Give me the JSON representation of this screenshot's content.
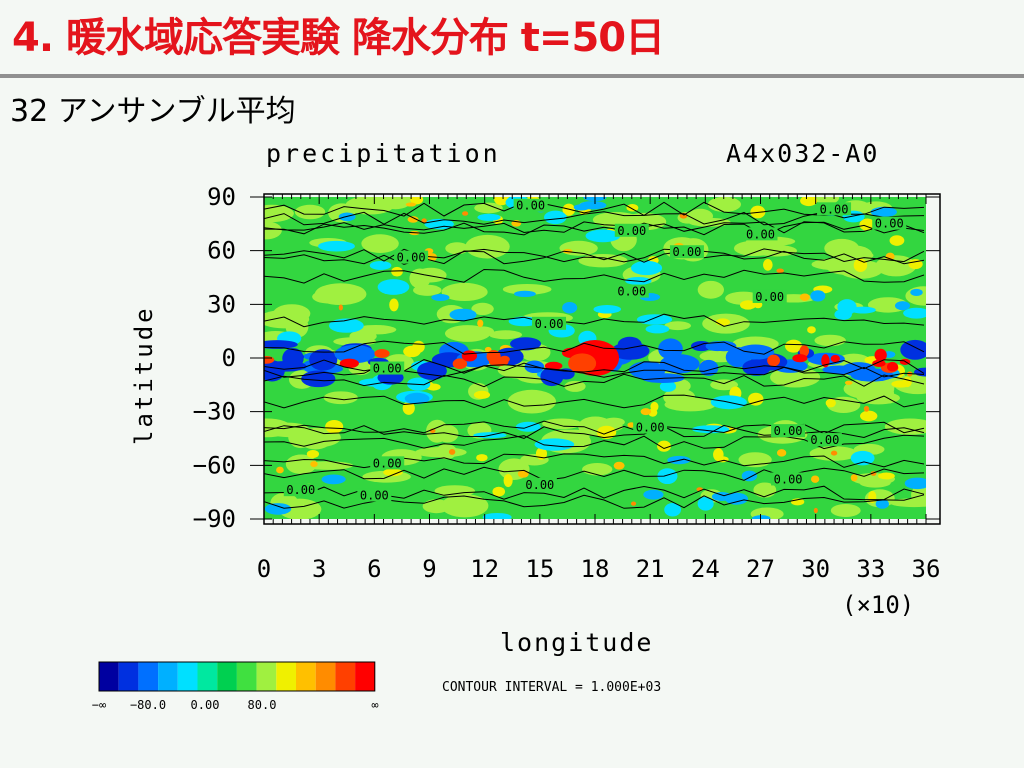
{
  "slide": {
    "title": "4. 暖水域応答実験 降水分布 t=50日",
    "subtitle": "32 アンサンブル平均",
    "title_color": "#e4141c"
  },
  "chart_data": {
    "type": "heatmap",
    "title": "precipitation",
    "run_label": "A4x032-A0",
    "xlabel": "longitude",
    "ylabel": "latitude",
    "x_scale_note": "(×10)",
    "xlim": [
      0,
      36
    ],
    "ylim": [
      -90,
      90
    ],
    "x_ticks": [
      "0",
      "3",
      "6",
      "9",
      "12",
      "15",
      "18",
      "21",
      "24",
      "27",
      "30",
      "33",
      "36"
    ],
    "y_ticks": [
      "90",
      "60",
      "30",
      "0",
      "−30",
      "−60",
      "−90"
    ],
    "contour_interval_text": "CONTOUR INTERVAL = 1.000E+03",
    "contour_labels": [
      {
        "text": "0.00",
        "lon": 14.5,
        "lat": 84
      },
      {
        "text": "0.00",
        "lon": 31.0,
        "lat": 82
      },
      {
        "text": "0.00",
        "lon": 34.0,
        "lat": 74
      },
      {
        "text": "0.00",
        "lon": 20.0,
        "lat": 70
      },
      {
        "text": "0.00",
        "lon": 27.0,
        "lat": 68
      },
      {
        "text": "0.00",
        "lon": 23.0,
        "lat": 58
      },
      {
        "text": "0.00",
        "lon": 8.0,
        "lat": 55
      },
      {
        "text": "0.00",
        "lon": 20.0,
        "lat": 36
      },
      {
        "text": "0.00",
        "lon": 27.5,
        "lat": 33
      },
      {
        "text": "0.00",
        "lon": 15.5,
        "lat": 18
      },
      {
        "text": "0.00",
        "lon": 6.7,
        "lat": -7
      },
      {
        "text": "0.00",
        "lon": 21.0,
        "lat": -40
      },
      {
        "text": "0.00",
        "lon": 28.5,
        "lat": -42
      },
      {
        "text": "0.00",
        "lon": 30.5,
        "lat": -47
      },
      {
        "text": "0.00",
        "lon": 6.7,
        "lat": -60
      },
      {
        "text": "0.00",
        "lon": 15.0,
        "lat": -72
      },
      {
        "text": "0.00",
        "lon": 28.5,
        "lat": -69
      },
      {
        "text": "0.00",
        "lon": 2.0,
        "lat": -75
      },
      {
        "text": "0.00",
        "lon": 6.0,
        "lat": -78
      }
    ],
    "colorbar": {
      "colors": [
        "#0000a0",
        "#0030e0",
        "#0070ff",
        "#00b0ff",
        "#00e0ff",
        "#00e8a0",
        "#00d050",
        "#40e040",
        "#a0f040",
        "#f0f000",
        "#ffc000",
        "#ff8c00",
        "#ff4000",
        "#ff0000"
      ],
      "labels": [
        "−∞",
        "−80.0",
        "0.00",
        "80.0",
        "∞"
      ]
    }
  }
}
